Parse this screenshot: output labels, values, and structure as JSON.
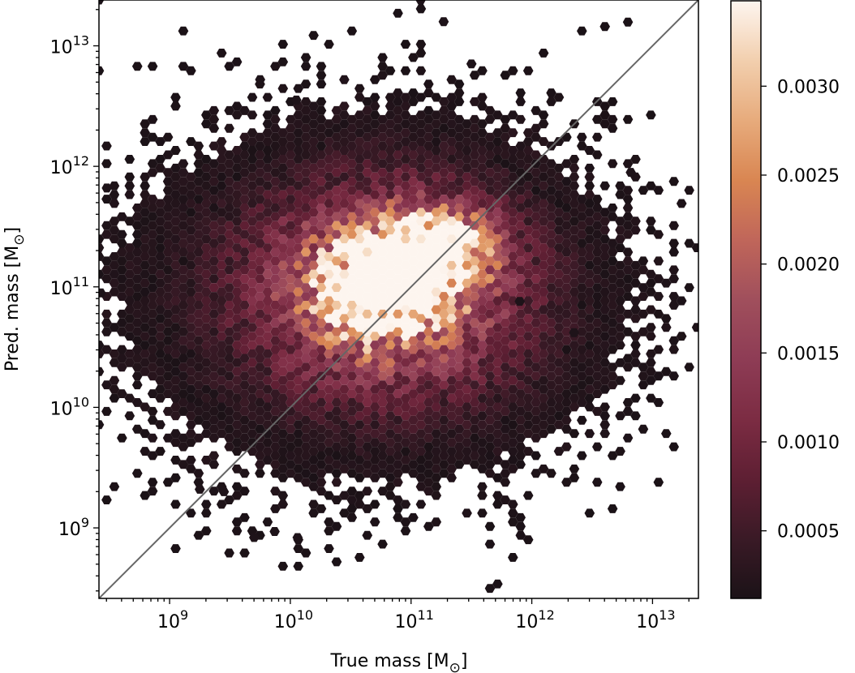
{
  "chart_data": {
    "type": "heatmap",
    "subtype": "hexbin",
    "xlabel": "True mass [M",
    "ylabel": "Pred. mass [M",
    "unit_symbol": "⊙",
    "unit_close": "]",
    "x_scale": "log",
    "y_scale": "log",
    "xlim": [
      260000000.0,
      24000000000000.0
    ],
    "ylim": [
      260000000.0,
      24000000000000.0
    ],
    "x_ticks": [
      {
        "value": 1000000000.0,
        "base": "10",
        "exp": "9"
      },
      {
        "value": 10000000000.0,
        "base": "10",
        "exp": "10"
      },
      {
        "value": 100000000000.0,
        "base": "10",
        "exp": "11"
      },
      {
        "value": 1000000000000.0,
        "base": "10",
        "exp": "12"
      },
      {
        "value": 10000000000000.0,
        "base": "10",
        "exp": "13"
      }
    ],
    "y_ticks": [
      {
        "value": 1000000000.0,
        "base": "10",
        "exp": "9"
      },
      {
        "value": 10000000000.0,
        "base": "10",
        "exp": "10"
      },
      {
        "value": 100000000000.0,
        "base": "10",
        "exp": "11"
      },
      {
        "value": 1000000000000.0,
        "base": "10",
        "exp": "12"
      },
      {
        "value": 10000000000000.0,
        "base": "10",
        "exp": "13"
      }
    ],
    "reference_line": "y = x",
    "grid": false,
    "colorbar": {
      "range": [
        0.00012,
        0.00348
      ],
      "ticks": [
        {
          "value": 0.0005,
          "label": "0.0005"
        },
        {
          "value": 0.001,
          "label": "0.0010"
        },
        {
          "value": 0.0015,
          "label": "0.0015"
        },
        {
          "value": 0.002,
          "label": "0.0020"
        },
        {
          "value": 0.0025,
          "label": "0.0025"
        },
        {
          "value": 0.003,
          "label": "0.0030"
        }
      ],
      "colormap_stops": [
        "#1b1217",
        "#3a1a26",
        "#5e1f33",
        "#7c2c43",
        "#8e3c55",
        "#a04f5c",
        "#c0665a",
        "#d98652",
        "#e7ab7c",
        "#f2cfae",
        "#fdf5ef"
      ]
    },
    "density_model": {
      "description": "Point density concentrated along y = x",
      "components": [
        {
          "center": [
            10.95,
            11.15
          ],
          "spread": [
            0.22,
            0.22
          ],
          "peak": 0.0034
        },
        {
          "center": [
            11.3,
            11.35
          ],
          "spread": [
            0.25,
            0.2
          ],
          "peak": 0.0026
        },
        {
          "center": [
            10.7,
            11.0
          ],
          "spread": [
            0.35,
            0.3
          ],
          "peak": 0.0023
        },
        {
          "center": [
            10.9,
            11.0
          ],
          "spread": [
            0.7,
            0.55
          ],
          "peak": 0.0017
        },
        {
          "center": [
            10.6,
            10.9
          ],
          "spread": [
            1.05,
            0.75
          ],
          "peak": 0.0008
        }
      ]
    },
    "outliers": [
      [
        8.43,
        10.95
      ],
      [
        8.48,
        11.82
      ],
      [
        9.75,
        12.72
      ],
      [
        11.08,
        13.38
      ],
      [
        11.27,
        13.2
      ],
      [
        12.82,
        11.95
      ],
      [
        11.5,
        12.85
      ],
      [
        10.05,
        12.55
      ],
      [
        9.7,
        8.92
      ],
      [
        9.87,
        8.97
      ],
      [
        10.06,
        8.92
      ],
      [
        12.35,
        10.62
      ],
      [
        11.9,
        10.88
      ],
      [
        9.25,
        9.32
      ],
      [
        9.45,
        9.3
      ]
    ]
  }
}
